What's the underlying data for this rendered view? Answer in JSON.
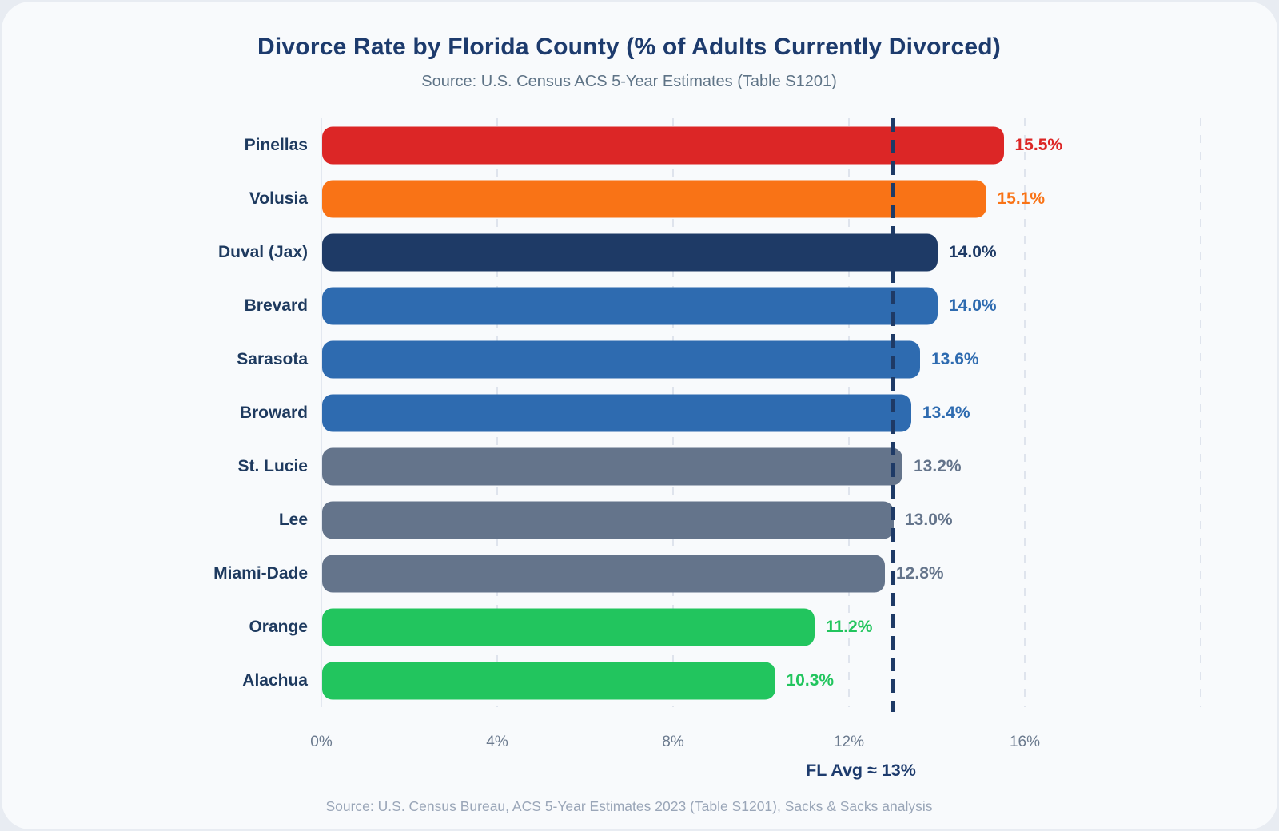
{
  "header": {
    "title": "Divorce Rate by Florida County (% of Adults Currently Divorced)",
    "subtitle": "Source: U.S. Census ACS 5-Year Estimates (Table S1201)"
  },
  "footer": {
    "text": "Source: U.S. Census Bureau, ACS 5-Year Estimates 2023 (Table S1201), Sacks & Sacks analysis"
  },
  "chart_data": {
    "type": "bar",
    "orientation": "horizontal",
    "title": "Divorce Rate by Florida County (% of Adults Currently Divorced)",
    "subtitle": "Source: U.S. Census ACS 5-Year Estimates (Table S1201)",
    "xlabel": "",
    "ylabel": "",
    "xlim": [
      0,
      20
    ],
    "grid": true,
    "x_ticks": [
      {
        "value": 0,
        "label": "0%"
      },
      {
        "value": 4,
        "label": "4%"
      },
      {
        "value": 8,
        "label": "8%"
      },
      {
        "value": 12,
        "label": "12%"
      },
      {
        "value": 16,
        "label": "16%"
      },
      {
        "value": 20,
        "label": ""
      }
    ],
    "bars": [
      {
        "label": "Pinellas",
        "value": 15.5,
        "value_label": "15.5%",
        "color": "#dc2626",
        "label_bold": false
      },
      {
        "label": "Volusia",
        "value": 15.1,
        "value_label": "15.1%",
        "color": "#f97316",
        "label_bold": false
      },
      {
        "label": "Duval (Jax)",
        "value": 14.0,
        "value_label": "14.0%",
        "color": "#1e3a66",
        "label_bold": true
      },
      {
        "label": "Brevard",
        "value": 14.0,
        "value_label": "14.0%",
        "color": "#2e6bb0",
        "label_bold": false
      },
      {
        "label": "Sarasota",
        "value": 13.6,
        "value_label": "13.6%",
        "color": "#2e6bb0",
        "label_bold": false
      },
      {
        "label": "Broward",
        "value": 13.4,
        "value_label": "13.4%",
        "color": "#2e6bb0",
        "label_bold": false
      },
      {
        "label": "St. Lucie",
        "value": 13.2,
        "value_label": "13.2%",
        "color": "#64748b",
        "label_bold": false
      },
      {
        "label": "Lee",
        "value": 13.0,
        "value_label": "13.0%",
        "color": "#64748b",
        "label_bold": false
      },
      {
        "label": "Miami-Dade",
        "value": 12.8,
        "value_label": "12.8%",
        "color": "#64748b",
        "label_bold": false
      },
      {
        "label": "Orange",
        "value": 11.2,
        "value_label": "11.2%",
        "color": "#22c55e",
        "label_bold": false
      },
      {
        "label": "Alachua",
        "value": 10.3,
        "value_label": "10.3%",
        "color": "#22c55e",
        "label_bold": false
      }
    ],
    "reference_line": {
      "label": "FL Avg ≈ 13%",
      "value": 13,
      "color": "#1e3a66",
      "style": "dashed"
    },
    "legend": null
  },
  "colors": {
    "background": "#e8ecf2",
    "card": "#f8fafc",
    "title": "#1d3b6d",
    "subtitle": "#5e7386",
    "tick_label": "#6b7a8e",
    "footer": "#9aa6b8",
    "grid": "#dfe4ed",
    "avg_line": "#1e3a66"
  }
}
